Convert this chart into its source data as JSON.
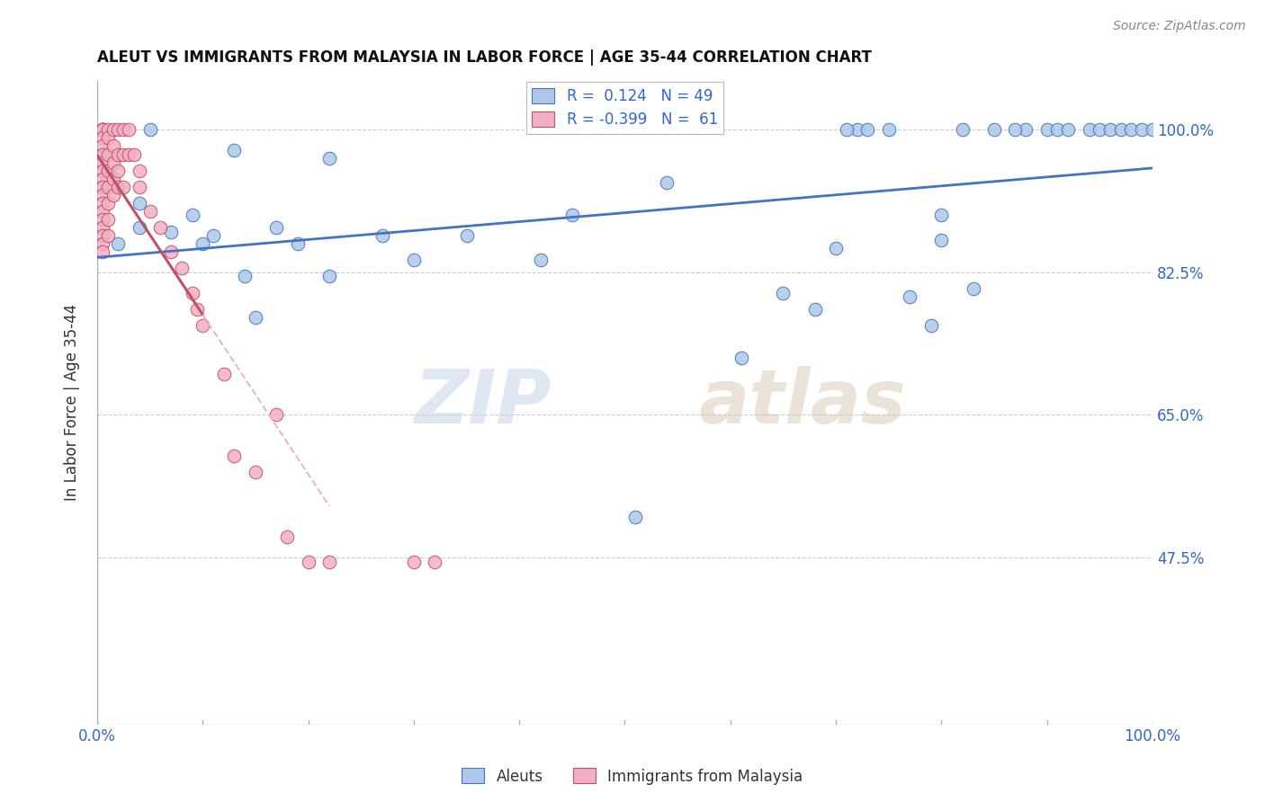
{
  "title": "ALEUT VS IMMIGRANTS FROM MALAYSIA IN LABOR FORCE | AGE 35-44 CORRELATION CHART",
  "source": "Source: ZipAtlas.com",
  "ylabel": "In Labor Force | Age 35-44",
  "ytick_labels": [
    "47.5%",
    "65.0%",
    "82.5%",
    "100.0%"
  ],
  "ytick_values": [
    0.475,
    0.65,
    0.825,
    1.0
  ],
  "xlim": [
    0.0,
    1.0
  ],
  "ylim": [
    0.27,
    1.06
  ],
  "blue_label": "Aleuts",
  "pink_label": "Immigrants from Malaysia",
  "blue_R": 0.124,
  "blue_N": 49,
  "pink_R": -0.399,
  "pink_N": 61,
  "blue_color": "#adc8e8",
  "pink_color": "#f2afc4",
  "blue_line_color": "#4472c4",
  "pink_line_color": "#c0506a",
  "pink_dashed_color": "#e8b8c8",
  "watermark_zip": "ZIP",
  "watermark_atlas": "atlas",
  "blue_scatter_x": [
    0.02,
    0.04,
    0.04,
    0.05,
    0.07,
    0.09,
    0.1,
    0.11,
    0.13,
    0.14,
    0.15,
    0.17,
    0.19,
    0.22,
    0.22,
    0.27,
    0.3,
    0.35,
    0.42,
    0.45,
    0.51,
    0.54,
    0.61,
    0.65,
    0.68,
    0.7,
    0.72,
    0.73,
    0.75,
    0.77,
    0.79,
    0.8,
    0.83,
    0.85,
    0.88,
    0.9,
    0.91,
    0.92,
    0.94,
    0.95,
    0.96,
    0.97,
    0.98,
    0.99,
    1.0,
    0.71,
    0.8,
    0.82,
    0.87
  ],
  "blue_scatter_y": [
    0.86,
    0.91,
    0.88,
    1.0,
    0.875,
    0.895,
    0.86,
    0.87,
    0.975,
    0.82,
    0.77,
    0.88,
    0.86,
    0.82,
    0.965,
    0.87,
    0.84,
    0.87,
    0.84,
    0.895,
    0.525,
    0.935,
    0.72,
    0.8,
    0.78,
    0.855,
    1.0,
    1.0,
    1.0,
    0.795,
    0.76,
    0.865,
    0.805,
    1.0,
    1.0,
    1.0,
    1.0,
    1.0,
    1.0,
    1.0,
    1.0,
    1.0,
    1.0,
    1.0,
    1.0,
    1.0,
    0.895,
    1.0,
    1.0
  ],
  "pink_scatter_x": [
    0.005,
    0.005,
    0.005,
    0.005,
    0.005,
    0.005,
    0.005,
    0.005,
    0.005,
    0.005,
    0.005,
    0.005,
    0.005,
    0.005,
    0.005,
    0.005,
    0.005,
    0.005,
    0.005,
    0.005,
    0.01,
    0.01,
    0.01,
    0.01,
    0.01,
    0.01,
    0.01,
    0.01,
    0.015,
    0.015,
    0.015,
    0.015,
    0.015,
    0.02,
    0.02,
    0.02,
    0.02,
    0.025,
    0.025,
    0.025,
    0.03,
    0.03,
    0.035,
    0.04,
    0.04,
    0.05,
    0.06,
    0.07,
    0.08,
    0.09,
    0.095,
    0.1,
    0.12,
    0.13,
    0.15,
    0.17,
    0.18,
    0.2,
    0.22,
    0.3,
    0.32
  ],
  "pink_scatter_y": [
    1.0,
    1.0,
    1.0,
    1.0,
    1.0,
    0.99,
    0.98,
    0.97,
    0.96,
    0.95,
    0.94,
    0.93,
    0.92,
    0.91,
    0.9,
    0.89,
    0.88,
    0.87,
    0.86,
    0.85,
    1.0,
    0.99,
    0.97,
    0.95,
    0.93,
    0.91,
    0.89,
    0.87,
    1.0,
    0.98,
    0.96,
    0.94,
    0.92,
    1.0,
    0.97,
    0.95,
    0.93,
    1.0,
    0.97,
    0.93,
    1.0,
    0.97,
    0.97,
    0.95,
    0.93,
    0.9,
    0.88,
    0.85,
    0.83,
    0.8,
    0.78,
    0.76,
    0.7,
    0.6,
    0.58,
    0.65,
    0.5,
    0.47,
    0.47,
    0.47,
    0.47
  ],
  "pink_line_solid_end_x": 0.1,
  "pink_line_y_at_x0": 0.92,
  "pink_line_slope": -4.5,
  "grid_color": "#cccccc",
  "axis_color": "#aaaaaa"
}
